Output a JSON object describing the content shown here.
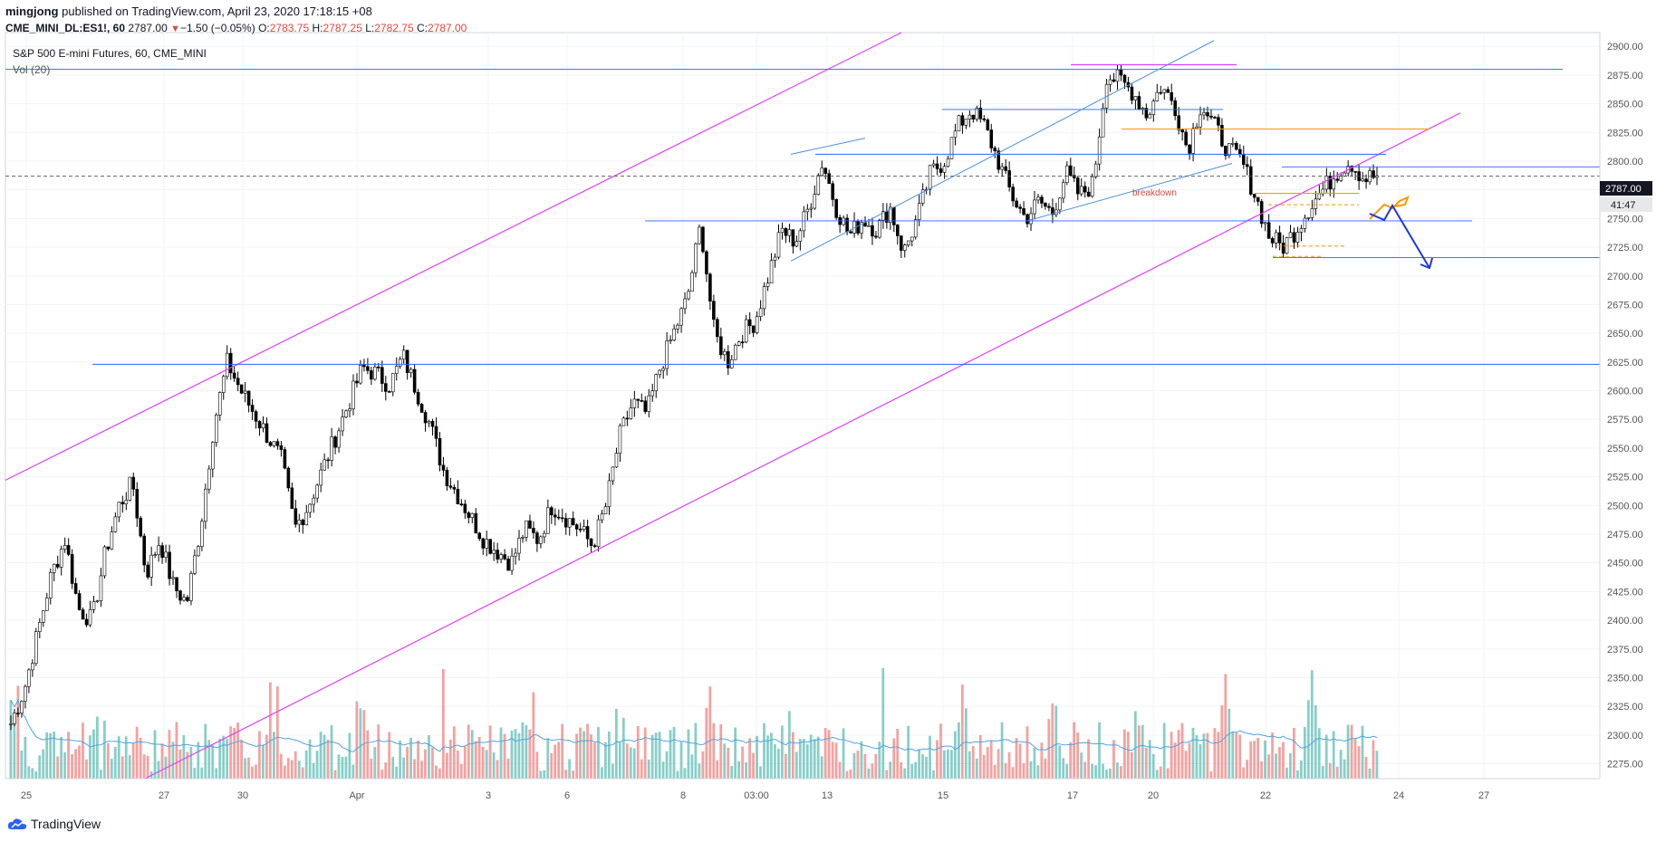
{
  "header": {
    "author": "mingjong",
    "published_text": "published on TradingView.com, April 23, 2020 17:18:15 +08",
    "symbol": "CME_MINI_DL:ES1!, 60",
    "last": "2787.00",
    "change": "−1.50 (−0.05%)",
    "o_label": "O:",
    "o": "2783.75",
    "h_label": "H:",
    "h": "2787.25",
    "l_label": "L:",
    "l": "2782.75",
    "c_label": "C:",
    "c": "2787.00"
  },
  "legend": {
    "title": "S&P 500 E-mini Futures, 60, CME_MINI",
    "vol": "Vol (20)"
  },
  "annotation": {
    "breakdown": "breakdown"
  },
  "price_labels": {
    "last_price": "2787.00",
    "countdown": "41:47"
  },
  "footer": {
    "brand": "TradingView"
  },
  "colors": {
    "channel": "#e040fb",
    "hline": "#2962ff",
    "trend": "#4a90e2",
    "orange": "#ff9800",
    "last_price": "#131722",
    "vol_up": "#26a69a",
    "vol_down": "#ef5350",
    "vol_ma": "#4fa3e3"
  },
  "chart_data": {
    "type": "candlestick",
    "ylim": [
      2262,
      2912
    ],
    "y_ticks": [
      2275,
      2300,
      2325,
      2350,
      2375,
      2400,
      2425,
      2450,
      2475,
      2500,
      2525,
      2550,
      2575,
      2600,
      2625,
      2650,
      2675,
      2700,
      2725,
      2750,
      2775,
      2800,
      2825,
      2850,
      2875,
      2900
    ],
    "x_ticks": [
      "25",
      "27",
      "30",
      "Apr",
      "3",
      "6",
      "8",
      "03:00",
      "13",
      "15",
      "17",
      "20",
      "22",
      "24",
      "27"
    ],
    "close_path": [
      [
        "25",
        2310
      ],
      [
        "25",
        2340
      ],
      [
        "25",
        2390
      ],
      [
        "25",
        2440
      ],
      [
        "25",
        2470
      ],
      [
        "25",
        2410
      ],
      [
        "25",
        2400
      ],
      [
        "25",
        2460
      ],
      [
        "25",
        2500
      ],
      [
        "25",
        2520
      ],
      [
        "25",
        2440
      ],
      [
        "25",
        2470
      ],
      [
        "27",
        2430
      ],
      [
        "27",
        2415
      ],
      [
        "27",
        2480
      ],
      [
        "27",
        2570
      ],
      [
        "27",
        2625
      ],
      [
        "27",
        2600
      ],
      [
        "27",
        2580
      ],
      [
        "27",
        2560
      ],
      [
        "27",
        2540
      ],
      [
        "30",
        2480
      ],
      [
        "30",
        2500
      ],
      [
        "30",
        2530
      ],
      [
        "30",
        2560
      ],
      [
        "30",
        2590
      ],
      [
        "30",
        2620
      ],
      [
        "30",
        2615
      ],
      [
        "Apr",
        2605
      ],
      [
        "Apr",
        2630
      ],
      [
        "Apr",
        2600
      ],
      [
        "Apr",
        2570
      ],
      [
        "Apr",
        2530
      ],
      [
        "Apr",
        2510
      ],
      [
        "Apr",
        2490
      ],
      [
        "Apr",
        2470
      ],
      [
        "Apr",
        2460
      ],
      [
        "3",
        2450
      ],
      [
        "3",
        2480
      ],
      [
        "3",
        2470
      ],
      [
        "3",
        2500
      ],
      [
        "3",
        2490
      ],
      [
        "3",
        2480
      ],
      [
        "6",
        2465
      ],
      [
        "6",
        2500
      ],
      [
        "6",
        2560
      ],
      [
        "6",
        2590
      ],
      [
        "6",
        2580
      ],
      [
        "6",
        2620
      ],
      [
        "6",
        2650
      ],
      [
        "8",
        2680
      ],
      [
        "8",
        2745
      ],
      [
        "8",
        2650
      ],
      [
        "8",
        2625
      ],
      [
        "8",
        2650
      ],
      [
        "8",
        2660
      ],
      [
        "03:00",
        2700
      ],
      [
        "03:00",
        2740
      ],
      [
        "03:00",
        2730
      ],
      [
        "03:00",
        2760
      ],
      [
        "13",
        2800
      ],
      [
        "13",
        2760
      ],
      [
        "13",
        2735
      ],
      [
        "13",
        2750
      ],
      [
        "13",
        2740
      ],
      [
        "13",
        2760
      ],
      [
        "13",
        2720
      ],
      [
        "13",
        2750
      ],
      [
        "15",
        2790
      ],
      [
        "15",
        2800
      ],
      [
        "15",
        2830
      ],
      [
        "15",
        2845
      ],
      [
        "15",
        2830
      ],
      [
        "15",
        2800
      ],
      [
        "15",
        2770
      ],
      [
        "15",
        2750
      ],
      [
        "15",
        2765
      ],
      [
        "17",
        2755
      ],
      [
        "17",
        2790
      ],
      [
        "17",
        2770
      ],
      [
        "17",
        2780
      ],
      [
        "17",
        2875
      ],
      [
        "17",
        2870
      ],
      [
        "17",
        2860
      ],
      [
        "20",
        2840
      ],
      [
        "20",
        2865
      ],
      [
        "20",
        2850
      ],
      [
        "20",
        2810
      ],
      [
        "20",
        2850
      ],
      [
        "20",
        2830
      ],
      [
        "20",
        2810
      ],
      [
        "22",
        2800
      ],
      [
        "22",
        2770
      ],
      [
        "22",
        2735
      ],
      [
        "22",
        2725
      ],
      [
        "22",
        2740
      ],
      [
        "22",
        2760
      ],
      [
        "22",
        2775
      ],
      [
        "22",
        2790
      ],
      [
        "22",
        2800
      ],
      [
        "22",
        2785
      ],
      [
        "24",
        2787
      ]
    ],
    "horizontal_levels": [
      2880,
      2845,
      2806,
      2795,
      2748,
      2716,
      2623
    ],
    "orange_levels": [
      2828,
      2772,
      2762,
      2726,
      2717
    ],
    "last_price": 2787.0
  }
}
